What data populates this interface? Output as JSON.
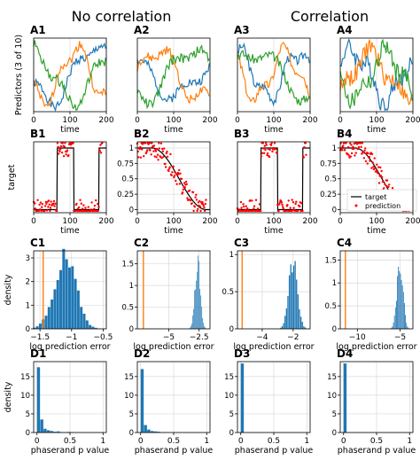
{
  "headers": {
    "left": "No correlation",
    "right": "Correlation"
  },
  "row_ylabels": {
    "A": "Predictors (3 of 10)",
    "B": "target",
    "C": "density",
    "D": "density"
  },
  "colors": {
    "blue": "#1f77b4",
    "orange": "#ff7f0e",
    "green": "#2ca02c",
    "red": "#ff0000",
    "black": "#000000",
    "hist": "#1f77b4",
    "vline": "#ff7f0e"
  },
  "chart_data": [
    {
      "id": "A1",
      "type": "line",
      "xlabel": "time",
      "ylabel": "Predictors (3 of 10)",
      "xlim": [
        0,
        200
      ],
      "ylim": [
        -1.2,
        1.2
      ],
      "xticks": [
        0,
        100,
        200
      ],
      "yticks": [],
      "style": "predictors",
      "seed": 1
    },
    {
      "id": "A2",
      "type": "line",
      "xlabel": "time",
      "ylabel": "",
      "xlim": [
        0,
        200
      ],
      "ylim": [
        -1.2,
        1.2
      ],
      "xticks": [
        0,
        100,
        200
      ],
      "yticks": [],
      "style": "predictors",
      "seed": 2
    },
    {
      "id": "A3",
      "type": "line",
      "xlabel": "time",
      "ylabel": "",
      "xlim": [
        0,
        200
      ],
      "ylim": [
        -1.2,
        1.2
      ],
      "xticks": [
        0,
        100,
        200
      ],
      "yticks": [],
      "style": "predictors",
      "seed": 3
    },
    {
      "id": "A4",
      "type": "line",
      "xlabel": "time",
      "ylabel": "",
      "xlim": [
        0,
        200
      ],
      "ylim": [
        -1.2,
        1.2
      ],
      "xticks": [
        0,
        100,
        200
      ],
      "yticks": [],
      "style": "predictors",
      "seed": 4
    },
    {
      "id": "B1",
      "type": "line",
      "xlabel": "time",
      "ylabel": "target",
      "xlim": [
        0,
        200
      ],
      "ylim": [
        -0.05,
        1.1
      ],
      "xticks": [
        0,
        100,
        200
      ],
      "yticks": [],
      "style": "square",
      "seed": 5
    },
    {
      "id": "B2",
      "type": "line",
      "xlabel": "time",
      "ylabel": "",
      "xlim": [
        0,
        200
      ],
      "ylim": [
        -0.05,
        1.1
      ],
      "xticks": [
        0,
        100,
        200
      ],
      "yticks": [
        0.0,
        0.25,
        0.5,
        0.75,
        1.0
      ],
      "style": "smooth",
      "seed": 6
    },
    {
      "id": "B3",
      "type": "line",
      "xlabel": "time",
      "ylabel": "",
      "xlim": [
        0,
        200
      ],
      "ylim": [
        -0.05,
        1.1
      ],
      "xticks": [
        0,
        100,
        200
      ],
      "yticks": [],
      "style": "square",
      "seed": 7
    },
    {
      "id": "B4",
      "type": "line",
      "xlabel": "time",
      "ylabel": "",
      "xlim": [
        0,
        200
      ],
      "ylim": [
        -0.05,
        1.1
      ],
      "xticks": [
        0,
        100,
        200
      ],
      "yticks": [
        0.0,
        0.25,
        0.5,
        0.75,
        1.0
      ],
      "style": "smooth",
      "seed": 8,
      "legend": [
        "target",
        "prediction"
      ]
    },
    {
      "id": "C1",
      "type": "bar",
      "xlabel": "log prediction error",
      "ylabel": "density",
      "xlim": [
        -1.6,
        -0.45
      ],
      "ylim": [
        0,
        3.3
      ],
      "xticks": [
        -1.5,
        -1.0,
        -0.5
      ],
      "yticks": [
        0,
        1,
        2,
        3
      ],
      "vline": -1.45,
      "hist": {
        "center": -1.1,
        "sd": 0.17,
        "peak": 3.0,
        "bins": 22
      }
    },
    {
      "id": "C2",
      "type": "bar",
      "xlabel": "log prediction error",
      "ylabel": "",
      "xlim": [
        -7.6,
        -1.6
      ],
      "ylim": [
        0,
        1.8
      ],
      "xticks": [
        -5.0,
        -2.5
      ],
      "yticks": [
        0.0,
        0.5,
        1.0,
        1.5
      ],
      "vline": -7.1,
      "hist": {
        "center": -2.6,
        "sd": 0.22,
        "peak": 1.55,
        "bins": 18
      }
    },
    {
      "id": "C3",
      "type": "bar",
      "xlabel": "log prediction error",
      "ylabel": "",
      "xlim": [
        -5.6,
        -0.9
      ],
      "ylim": [
        0,
        1.05
      ],
      "xticks": [
        -4,
        -2
      ],
      "yticks": [
        0.0,
        0.5,
        1.0
      ],
      "vline": -5.3,
      "hist": {
        "center": -2.0,
        "sd": 0.28,
        "peak": 0.9,
        "bins": 18
      }
    },
    {
      "id": "C4",
      "type": "bar",
      "xlabel": "log prediction error",
      "ylabel": "",
      "xlim": [
        -12,
        -3.5
      ],
      "ylim": [
        0,
        1.7
      ],
      "xticks": [
        -10,
        -5
      ],
      "yticks": [
        0.0,
        0.5,
        1.0,
        1.5
      ],
      "vline": -11.4,
      "hist": {
        "center": -5.0,
        "sd": 0.35,
        "peak": 1.5,
        "bins": 18
      }
    },
    {
      "id": "D1",
      "type": "bar",
      "xlabel": "phaserand p value",
      "ylabel": "density",
      "xlim": [
        -0.05,
        1.05
      ],
      "ylim": [
        0,
        19
      ],
      "xticks": [
        0.0,
        0.5,
        1.0
      ],
      "yticks": [
        0,
        5,
        10,
        15
      ],
      "bars": [
        [
          0.0,
          17.5
        ],
        [
          0.05,
          3.5
        ],
        [
          0.1,
          1.0
        ],
        [
          0.15,
          0.6
        ],
        [
          0.2,
          0.4
        ],
        [
          0.25,
          0.2
        ],
        [
          0.3,
          0.3
        ],
        [
          0.35,
          0.1
        ],
        [
          0.45,
          0.15
        ],
        [
          0.5,
          0.1
        ]
      ],
      "barw": 0.05
    },
    {
      "id": "D2",
      "type": "bar",
      "xlabel": "phaserand p value",
      "ylabel": "",
      "xlim": [
        -0.05,
        1.05
      ],
      "ylim": [
        0,
        19
      ],
      "xticks": [
        0.0,
        0.5,
        1.0
      ],
      "yticks": [
        0,
        5,
        10,
        15
      ],
      "bars": [
        [
          0.0,
          17.0
        ],
        [
          0.05,
          2.0
        ],
        [
          0.1,
          0.8
        ],
        [
          0.15,
          0.4
        ],
        [
          0.2,
          0.3
        ],
        [
          0.25,
          0.2
        ],
        [
          0.35,
          0.1
        ]
      ],
      "barw": 0.05
    },
    {
      "id": "D3",
      "type": "bar",
      "xlabel": "phaserand p value",
      "ylabel": "",
      "xlim": [
        -0.05,
        1.05
      ],
      "ylim": [
        0,
        19
      ],
      "xticks": [
        0.0,
        0.5,
        1.0
      ],
      "yticks": [
        0,
        5,
        10,
        15
      ],
      "bars": [
        [
          0.0,
          18.5
        ]
      ],
      "barw": 0.05
    },
    {
      "id": "D4",
      "type": "bar",
      "xlabel": "phaserand p value",
      "ylabel": "",
      "xlim": [
        -0.05,
        1.05
      ],
      "ylim": [
        0,
        19
      ],
      "xticks": [
        0.0,
        0.5,
        1.0
      ],
      "yticks": [
        0,
        5,
        10,
        15
      ],
      "bars": [
        [
          0.0,
          18.5
        ]
      ],
      "barw": 0.05
    }
  ]
}
